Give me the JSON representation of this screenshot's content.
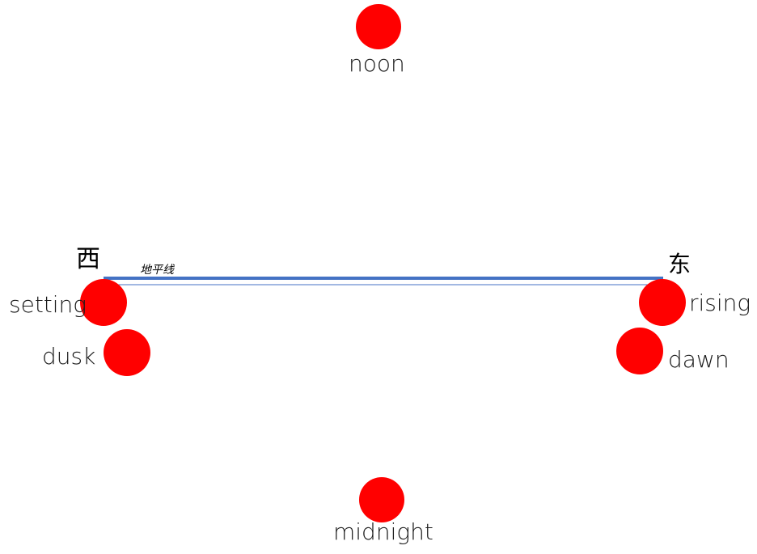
{
  "horizon": {
    "label": "地平线",
    "west_label": "西",
    "east_label": "东",
    "line_color": "#4472c4"
  },
  "sun_color": "#ff0000",
  "positions": [
    {
      "id": "noon",
      "label": "noon"
    },
    {
      "id": "setting",
      "label": "setting"
    },
    {
      "id": "rising",
      "label": "rising"
    },
    {
      "id": "dusk",
      "label": "dusk"
    },
    {
      "id": "dawn",
      "label": "dawn"
    },
    {
      "id": "midnight",
      "label": "midnight"
    }
  ]
}
